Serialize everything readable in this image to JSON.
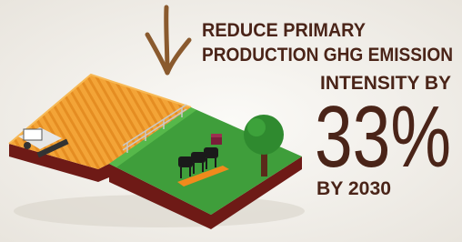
{
  "headline": {
    "line1": "REDUCE PRIMARY",
    "line2": "PRODUCTION GHG EMISSION",
    "line3": "INTENSITY BY",
    "figure": "33%",
    "deadline": "BY 2030"
  }
}
